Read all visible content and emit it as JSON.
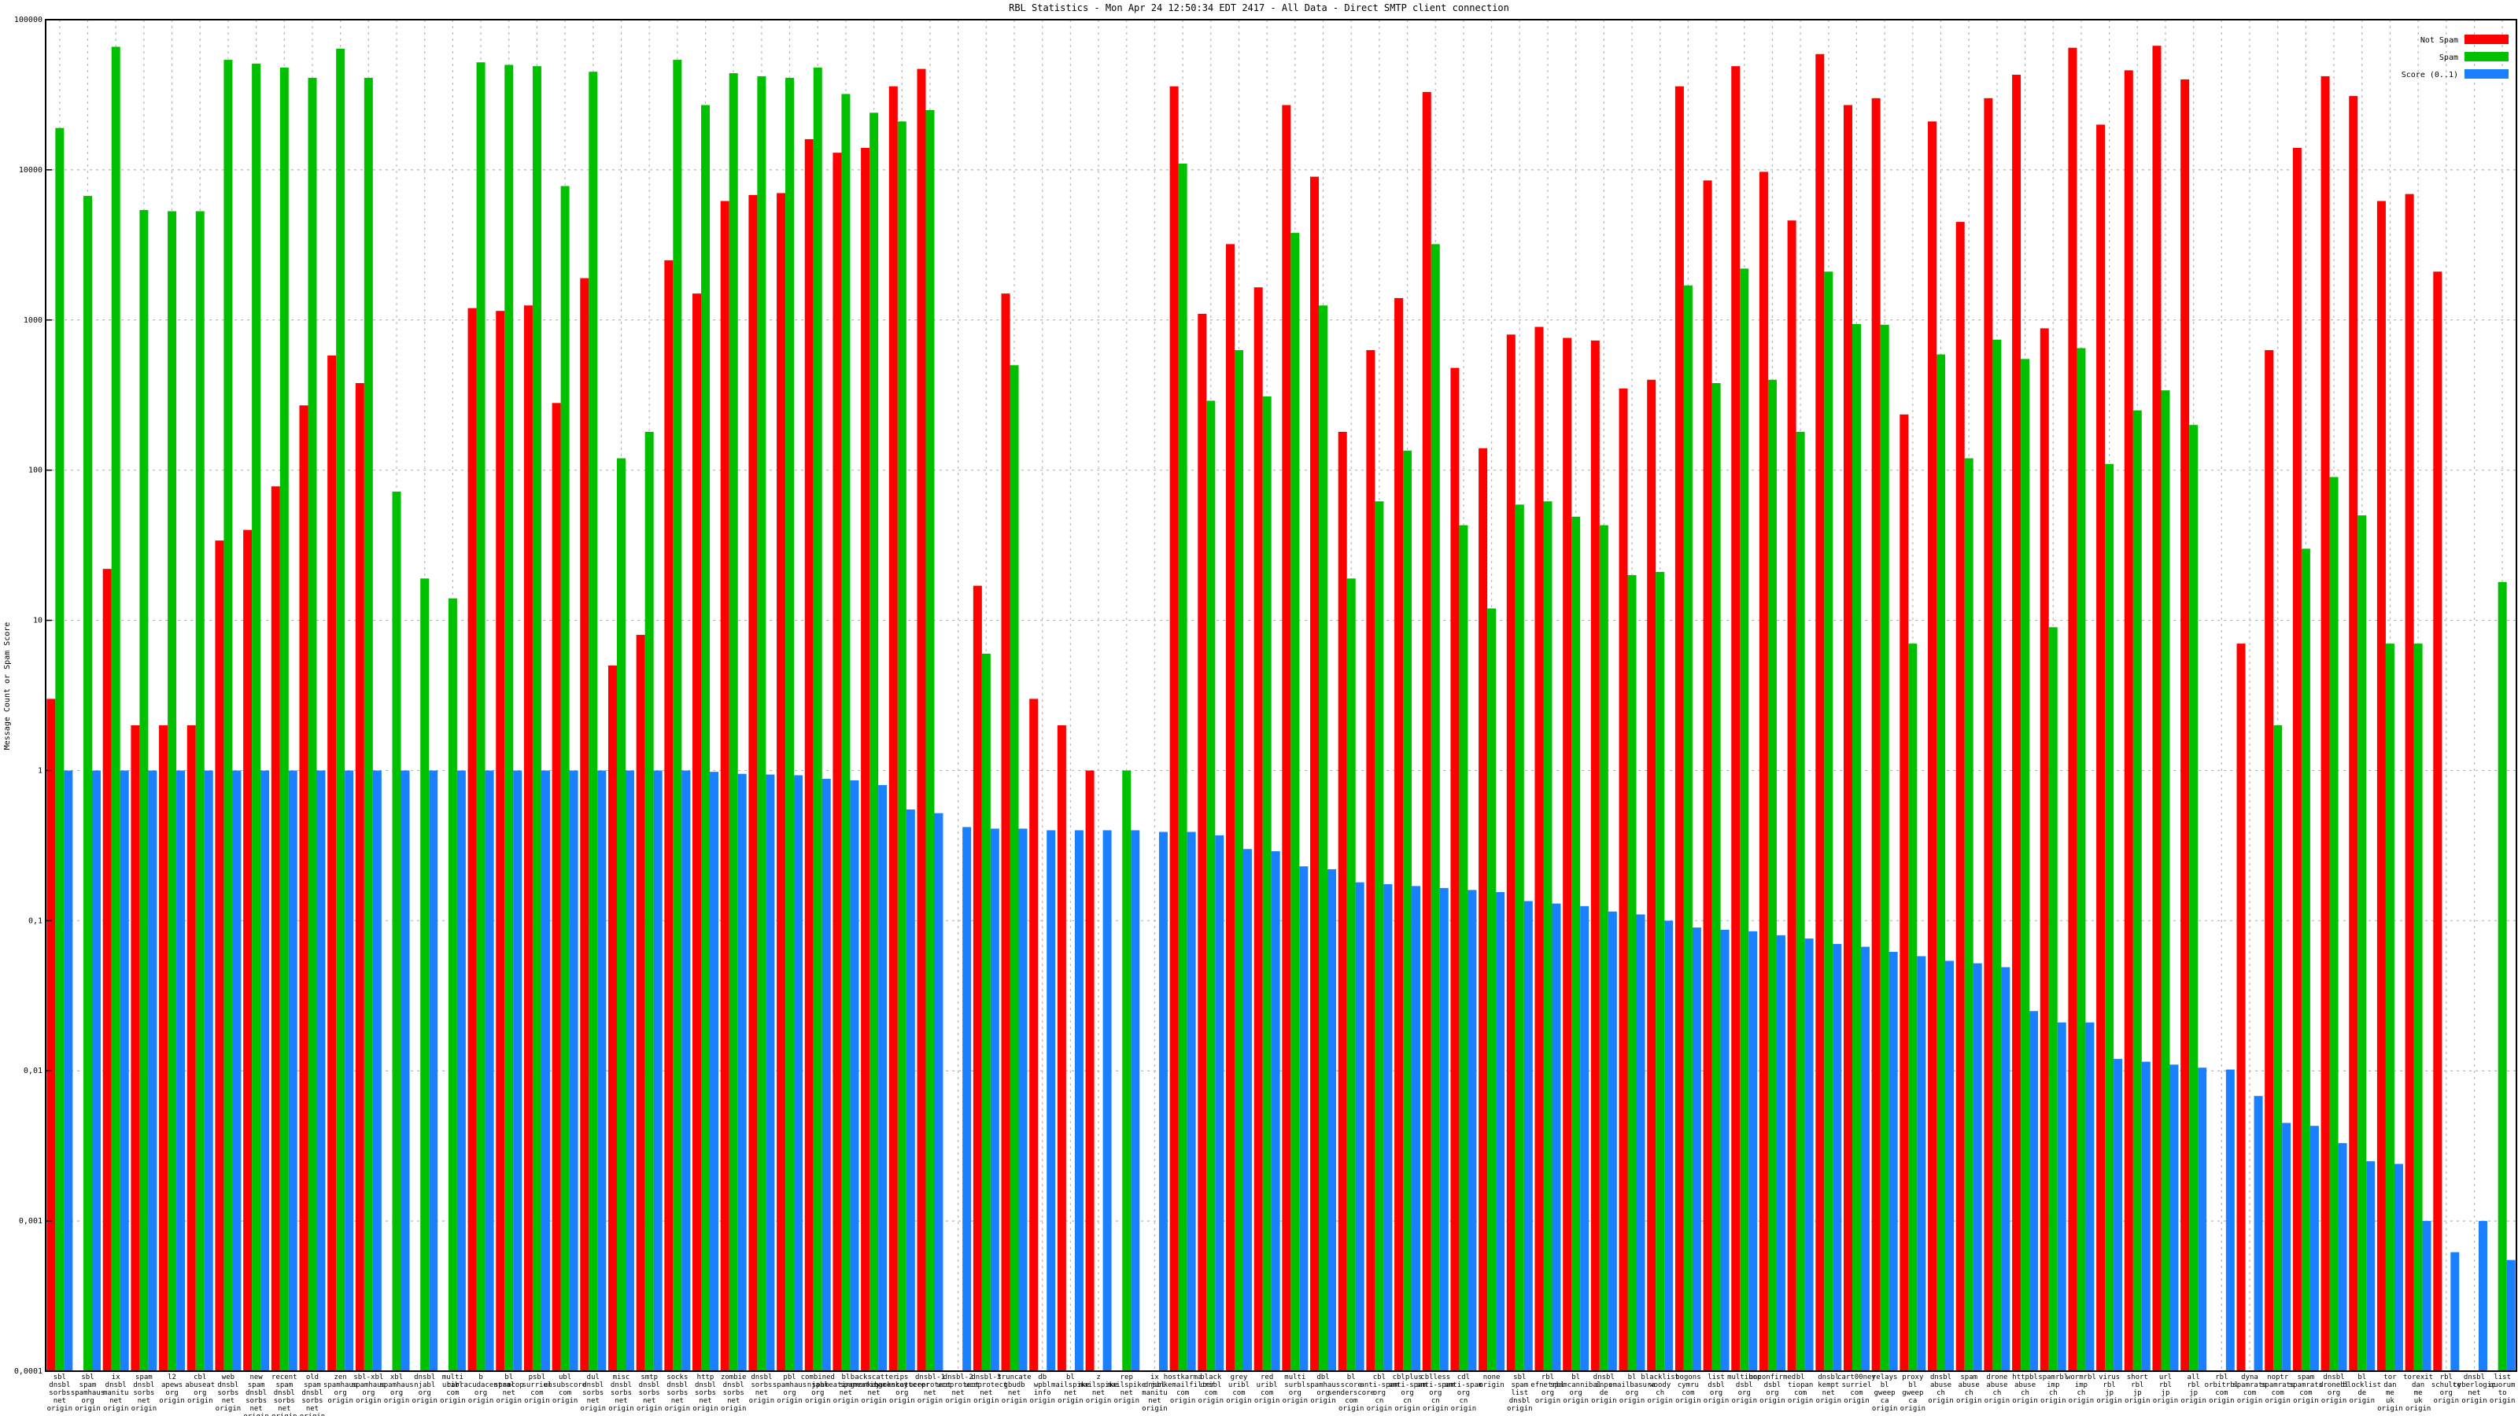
{
  "chart_data": {
    "type": "bar",
    "title": "RBL Statistics - Mon Apr 24 12:50:34 EDT 2417 - All Data - Direct SMTP client connection",
    "xlabel": "",
    "ylabel": "Message Count or Spam Score",
    "yscale": "log",
    "ylim": [
      0.0001,
      100000
    ],
    "yticks": [
      "0,0001",
      "0,001",
      "0,01",
      "0,1",
      "1",
      "10",
      "100",
      "1000",
      "10000",
      "100000"
    ],
    "grid": true,
    "legend_position": "top-right",
    "colors": {
      "Not Spam": "#ff0000",
      "Spam": "#00c000",
      "Score (0..1)": "#1a80ff"
    },
    "categories": [
      [
        "sbl",
        "dnsbl",
        "sorbs",
        "net",
        "origin"
      ],
      [
        "sbl",
        "spam",
        "spamhaus",
        "org",
        "origin"
      ],
      [
        "ix",
        "dnsbl",
        "manitu",
        "net",
        "origin"
      ],
      [
        "spam",
        "dnsbl",
        "sorbs",
        "net",
        "origin"
      ],
      [
        "l2",
        "apews",
        "org",
        "origin"
      ],
      [
        "cbl",
        "abuseat",
        "org",
        "origin"
      ],
      [
        "web",
        "dnsbl",
        "sorbs",
        "net",
        "origin"
      ],
      [
        "new",
        "spam",
        "dnsbl",
        "sorbs",
        "net",
        "origin"
      ],
      [
        "recent",
        "spam",
        "dnsbl",
        "sorbs",
        "net",
        "origin"
      ],
      [
        "old",
        "spam",
        "dnsbl",
        "sorbs",
        "net",
        "origin"
      ],
      [
        "zen",
        "spamhaus",
        "org",
        "origin"
      ],
      [
        "sbl-xbl",
        "spamhaus",
        "org",
        "origin"
      ],
      [
        "xbl",
        "spamhaus",
        "org",
        "origin"
      ],
      [
        "dnsbl",
        "njabl",
        "org",
        "origin"
      ],
      [
        "multi",
        "uribl",
        "com",
        "origin"
      ],
      [
        "b",
        "barracudacentral",
        "org",
        "origin"
      ],
      [
        "bl",
        "spamcop",
        "net",
        "origin"
      ],
      [
        "psbl",
        "surriel",
        "com",
        "origin"
      ],
      [
        "ubl",
        "unsubscore",
        "com",
        "origin"
      ],
      [
        "dul",
        "dnsbl",
        "sorbs",
        "net",
        "origin"
      ],
      [
        "misc",
        "dnsbl",
        "sorbs",
        "net",
        "origin"
      ],
      [
        "smtp",
        "dnsbl",
        "sorbs",
        "net",
        "origin"
      ],
      [
        "socks",
        "dnsbl",
        "sorbs",
        "net",
        "origin"
      ],
      [
        "http",
        "dnsbl",
        "sorbs",
        "net",
        "origin"
      ],
      [
        "zombie",
        "dnsbl",
        "sorbs",
        "net",
        "origin"
      ],
      [
        "dnsbl",
        "sorbs",
        "net",
        "origin"
      ],
      [
        "pbl",
        "spamhaus",
        "org",
        "origin"
      ],
      [
        "combined",
        "njabl",
        "org",
        "origin"
      ],
      [
        "bl",
        "spameatingmonkey",
        "net",
        "origin"
      ],
      [
        "backscatter",
        "spameatingmonkey",
        "net",
        "origin"
      ],
      [
        "ips",
        "backscatterer",
        "org",
        "origin"
      ],
      [
        "dnsbl-1",
        "uceprotect",
        "net",
        "origin"
      ],
      [
        "dnsbl-2",
        "uceprotect",
        "net",
        "origin"
      ],
      [
        "dnsbl-3",
        "uceprotect",
        "net",
        "origin"
      ],
      [
        "truncate",
        "gbudb",
        "net",
        "origin"
      ],
      [
        "db",
        "wpbl",
        "info",
        "origin"
      ],
      [
        "bl",
        "mailspike",
        "net",
        "origin"
      ],
      [
        "z",
        "mailspike",
        "net",
        "origin"
      ],
      [
        "rep",
        "mailspike",
        "net",
        "origin"
      ],
      [
        "ix",
        "dnsbl",
        "manitu",
        "net",
        "origin"
      ],
      [
        "hostkarma",
        "junkemailfilter",
        "com",
        "origin"
      ],
      [
        "black",
        "uribl",
        "com",
        "origin"
      ],
      [
        "grey",
        "uribl",
        "com",
        "origin"
      ],
      [
        "red",
        "uribl",
        "com",
        "origin"
      ],
      [
        "multi",
        "surbl",
        "org",
        "origin"
      ],
      [
        "dbl",
        "spamhaus",
        "org",
        "origin"
      ],
      [
        "bl",
        "score",
        "senderscore",
        "com",
        "origin"
      ],
      [
        "cbl",
        "anti-spam",
        "org",
        "cn",
        "origin"
      ],
      [
        "cblplus",
        "anti-spam",
        "org",
        "cn",
        "origin"
      ],
      [
        "cblless",
        "anti-spam",
        "org",
        "cn",
        "origin"
      ],
      [
        "cdl",
        "anti-spam",
        "org",
        "cn",
        "origin"
      ],
      [
        "none",
        "origin"
      ],
      [
        "sbl",
        "spam",
        "list",
        "dnsbl",
        "origin"
      ],
      [
        "rbl",
        "efnetrbl",
        "org",
        "origin"
      ],
      [
        "bl",
        "spamcannibal",
        "org",
        "origin"
      ],
      [
        "dnsbl",
        "inps",
        "de",
        "origin"
      ],
      [
        "bl",
        "emailbasura",
        "org",
        "origin"
      ],
      [
        "blacklist",
        "woody",
        "ch",
        "origin"
      ],
      [
        "bogons",
        "cymru",
        "com",
        "origin"
      ],
      [
        "list",
        "dsbl",
        "org",
        "origin"
      ],
      [
        "multihop",
        "dsbl",
        "org",
        "origin"
      ],
      [
        "unconfirmed",
        "dsbl",
        "org",
        "origin"
      ],
      [
        "bl",
        "tiopan",
        "com",
        "origin"
      ],
      [
        "dnsbl",
        "kempt",
        "net",
        "origin"
      ],
      [
        "cart00ney",
        "surriel",
        "com",
        "origin"
      ],
      [
        "relays",
        "bl",
        "gweep",
        "ca",
        "origin"
      ],
      [
        "proxy",
        "bl",
        "gweep",
        "ca",
        "origin"
      ],
      [
        "dnsbl",
        "abuse",
        "ch",
        "origin"
      ],
      [
        "spam",
        "abuse",
        "ch",
        "origin"
      ],
      [
        "drone",
        "abuse",
        "ch",
        "origin"
      ],
      [
        "httpbl",
        "abuse",
        "ch",
        "origin"
      ],
      [
        "spamrbl",
        "imp",
        "ch",
        "origin"
      ],
      [
        "wormrbl",
        "imp",
        "ch",
        "origin"
      ],
      [
        "virus",
        "rbl",
        "jp",
        "origin"
      ],
      [
        "short",
        "rbl",
        "jp",
        "origin"
      ],
      [
        "url",
        "rbl",
        "jp",
        "origin"
      ],
      [
        "all",
        "rbl",
        "jp",
        "origin"
      ],
      [
        "rbl",
        "orbitrbl",
        "com",
        "origin"
      ],
      [
        "dyna",
        "spamrats",
        "com",
        "origin"
      ],
      [
        "noptr",
        "spamrats",
        "com",
        "origin"
      ],
      [
        "spam",
        "spamrats",
        "com",
        "origin"
      ],
      [
        "dnsbl",
        "dronebl",
        "org",
        "origin"
      ],
      [
        "bl",
        "blocklist",
        "de",
        "origin"
      ],
      [
        "tor",
        "dan",
        "me",
        "uk",
        "origin"
      ],
      [
        "torexit",
        "dan",
        "me",
        "uk",
        "origin"
      ],
      [
        "rbl",
        "schulte",
        "org",
        "origin"
      ],
      [
        "dnsbl",
        "cyberlogic",
        "net",
        "origin"
      ],
      [
        "list",
        "quorum",
        "to",
        "origin"
      ]
    ],
    "series": [
      {
        "name": "Not Spam",
        "values": [
          3,
          0,
          22,
          2,
          2,
          2,
          34,
          40,
          78,
          270,
          580,
          380,
          0,
          0,
          0,
          1200,
          1150,
          1250,
          280,
          1900,
          5,
          8,
          2500,
          1500,
          6200,
          6800,
          7000,
          16000,
          13000,
          14000,
          36000,
          47000,
          0,
          17,
          1500,
          3,
          2,
          1,
          0,
          0,
          36000,
          1100,
          3200,
          1650,
          27000,
          9000,
          180,
          630,
          1400,
          33000,
          480,
          140,
          800,
          900,
          760,
          730,
          350,
          400,
          36000,
          8500,
          49000,
          9700,
          4600,
          59000,
          27000,
          30000,
          235,
          21000,
          4500,
          30000,
          43000,
          880,
          65000,
          20000,
          46000,
          67000,
          40000,
          0,
          7,
          630,
          14000,
          42000,
          31000,
          6200,
          6900,
          2100,
          0,
          0
        ]
      },
      {
        "name": "Spam",
        "values": [
          19000,
          6700,
          66000,
          5400,
          5300,
          5300,
          54000,
          51000,
          48000,
          41000,
          64000,
          41000,
          72,
          19,
          14,
          52000,
          50000,
          49000,
          7800,
          45000,
          120,
          180,
          54000,
          27000,
          44000,
          42000,
          41000,
          48000,
          32000,
          24000,
          21000,
          25000,
          0,
          6,
          500,
          0,
          0,
          0,
          1,
          0,
          11000,
          290,
          630,
          310,
          3800,
          1250,
          19,
          62,
          135,
          3200,
          43,
          12,
          59,
          62,
          49,
          43,
          20,
          21,
          1700,
          380,
          2200,
          400,
          180,
          2100,
          940,
          930,
          7,
          590,
          120,
          740,
          550,
          9,
          650,
          110,
          250,
          340,
          200,
          0,
          0,
          2,
          30,
          90,
          50,
          7,
          7,
          0,
          0,
          18
        ]
      },
      {
        "name": "Score (0..1)",
        "values": [
          1,
          1,
          1,
          1,
          1,
          1,
          1,
          1,
          1,
          1,
          1,
          1,
          1,
          1,
          1,
          1,
          1,
          1,
          1,
          1,
          1,
          1,
          1,
          0.98,
          0.95,
          0.94,
          0.93,
          0.88,
          0.86,
          0.8,
          0.55,
          0.52,
          0.42,
          0.41,
          0.41,
          0.4,
          0.4,
          0.4,
          0.4,
          0.39,
          0.39,
          0.37,
          0.3,
          0.29,
          0.23,
          0.22,
          0.18,
          0.175,
          0.17,
          0.165,
          0.16,
          0.155,
          0.135,
          0.13,
          0.125,
          0.115,
          0.11,
          0.1,
          0.09,
          0.087,
          0.085,
          0.08,
          0.076,
          0.07,
          0.067,
          0.062,
          0.058,
          0.054,
          0.052,
          0.049,
          0.025,
          0.021,
          0.021,
          0.012,
          0.0115,
          0.011,
          0.0105,
          0.0102,
          0.0068,
          0.0045,
          0.0043,
          0.0033,
          0.0025,
          0.0024,
          0.001,
          0.00062,
          0.001,
          0.00055
        ]
      }
    ]
  }
}
